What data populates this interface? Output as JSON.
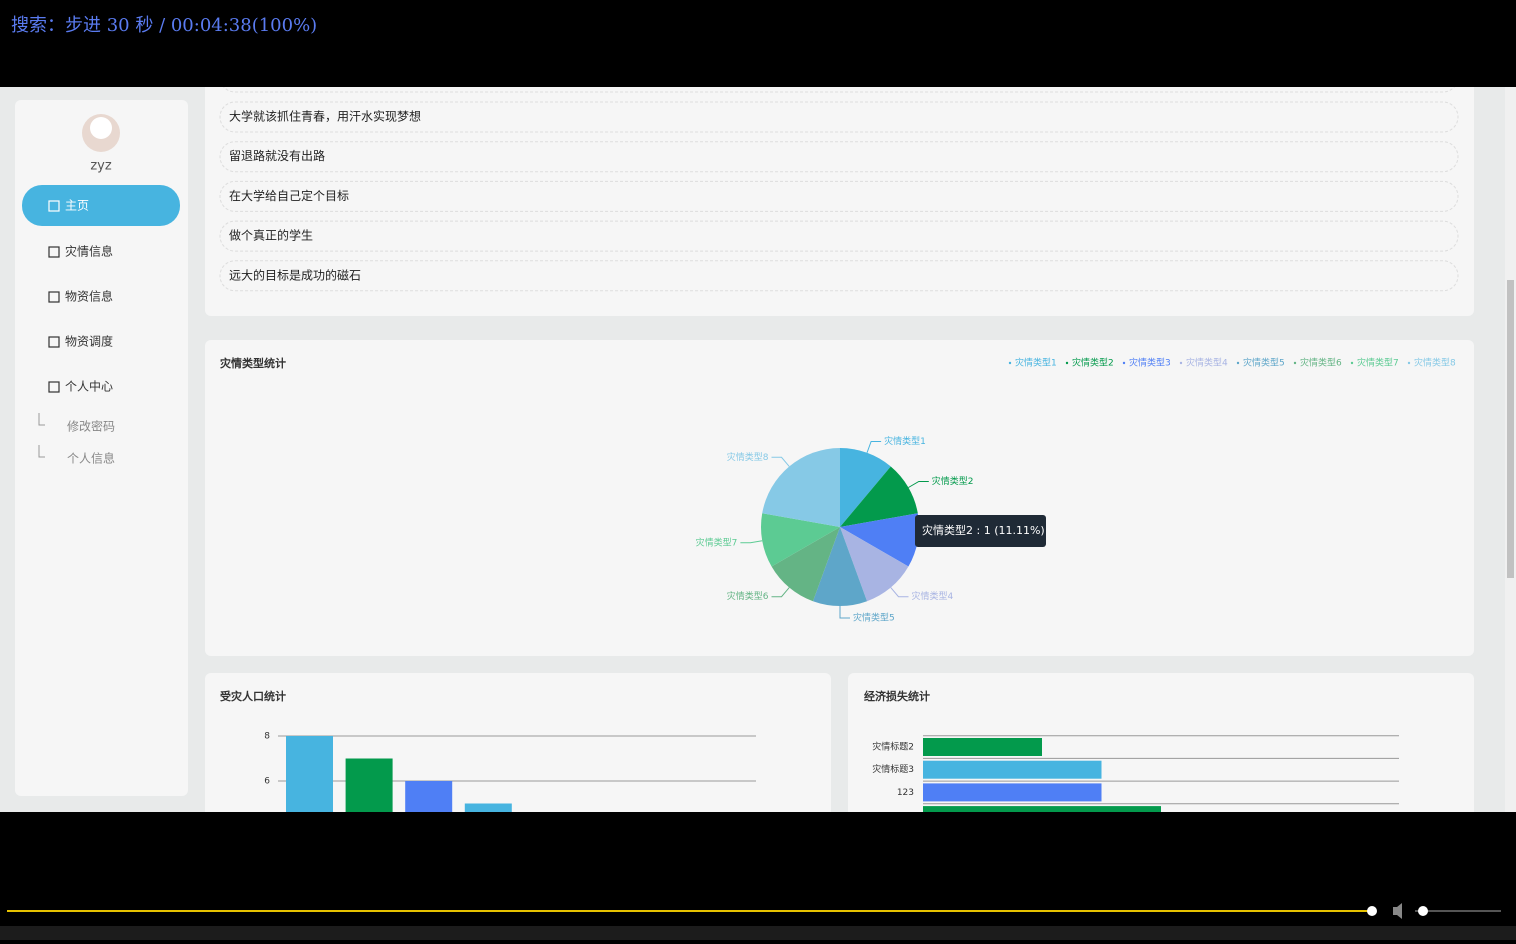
{
  "player": {
    "overlay_text": "搜索：步进 30 秒 / 00:04:38(100%)"
  },
  "sidebar": {
    "user": "zyz",
    "menu": [
      "主页",
      "灾情信息",
      "物资信息",
      "物资调度",
      "个人中心"
    ],
    "submenu": [
      "修改密码",
      "个人信息"
    ]
  },
  "quotes": [
    "大学就该抓住青春，用汗水实现梦想",
    "留退路就没有出路",
    "在大学给自己定个目标",
    "做个真正的学生",
    "远大的目标是成功的磁石"
  ],
  "chart_data": [
    {
      "type": "pie",
      "title": "灾情类型统计",
      "categories": [
        "灾情类型1",
        "灾情类型2",
        "灾情类型3",
        "灾情类型4",
        "灾情类型5",
        "灾情类型6",
        "灾情类型7",
        "灾情类型8"
      ],
      "values": [
        1,
        1,
        1,
        1,
        1,
        1,
        1,
        2
      ],
      "colors": [
        "#47b4e0",
        "#039a4c",
        "#4f7ff5",
        "#a8b4e3",
        "#5ea6c9",
        "#64b485",
        "#5ccb93",
        "#86c9e6"
      ],
      "legend": "top-right",
      "tooltip": "灾情类型2 : 1 (11.11%)"
    },
    {
      "type": "bar",
      "title": "受灾人口统计",
      "categories": [
        null,
        null,
        null,
        null
      ],
      "values": [
        8,
        7,
        6,
        5
      ],
      "colors": [
        "#47b4e0",
        "#039a4c",
        "#4f7ff5",
        "#47b4e0"
      ],
      "ylim": [
        0,
        8
      ],
      "yticks": [
        6,
        8
      ],
      "grid": true
    },
    {
      "type": "barh",
      "title": "经济损失统计",
      "categories": [
        "灾情标题2",
        "灾情标题3",
        "123",
        null
      ],
      "values": [
        2,
        3,
        3,
        4
      ],
      "colors": [
        "#039a4c",
        "#47b4e0",
        "#4f7ff5",
        "#039a4c"
      ],
      "xlim": [
        0,
        8
      ]
    }
  ]
}
